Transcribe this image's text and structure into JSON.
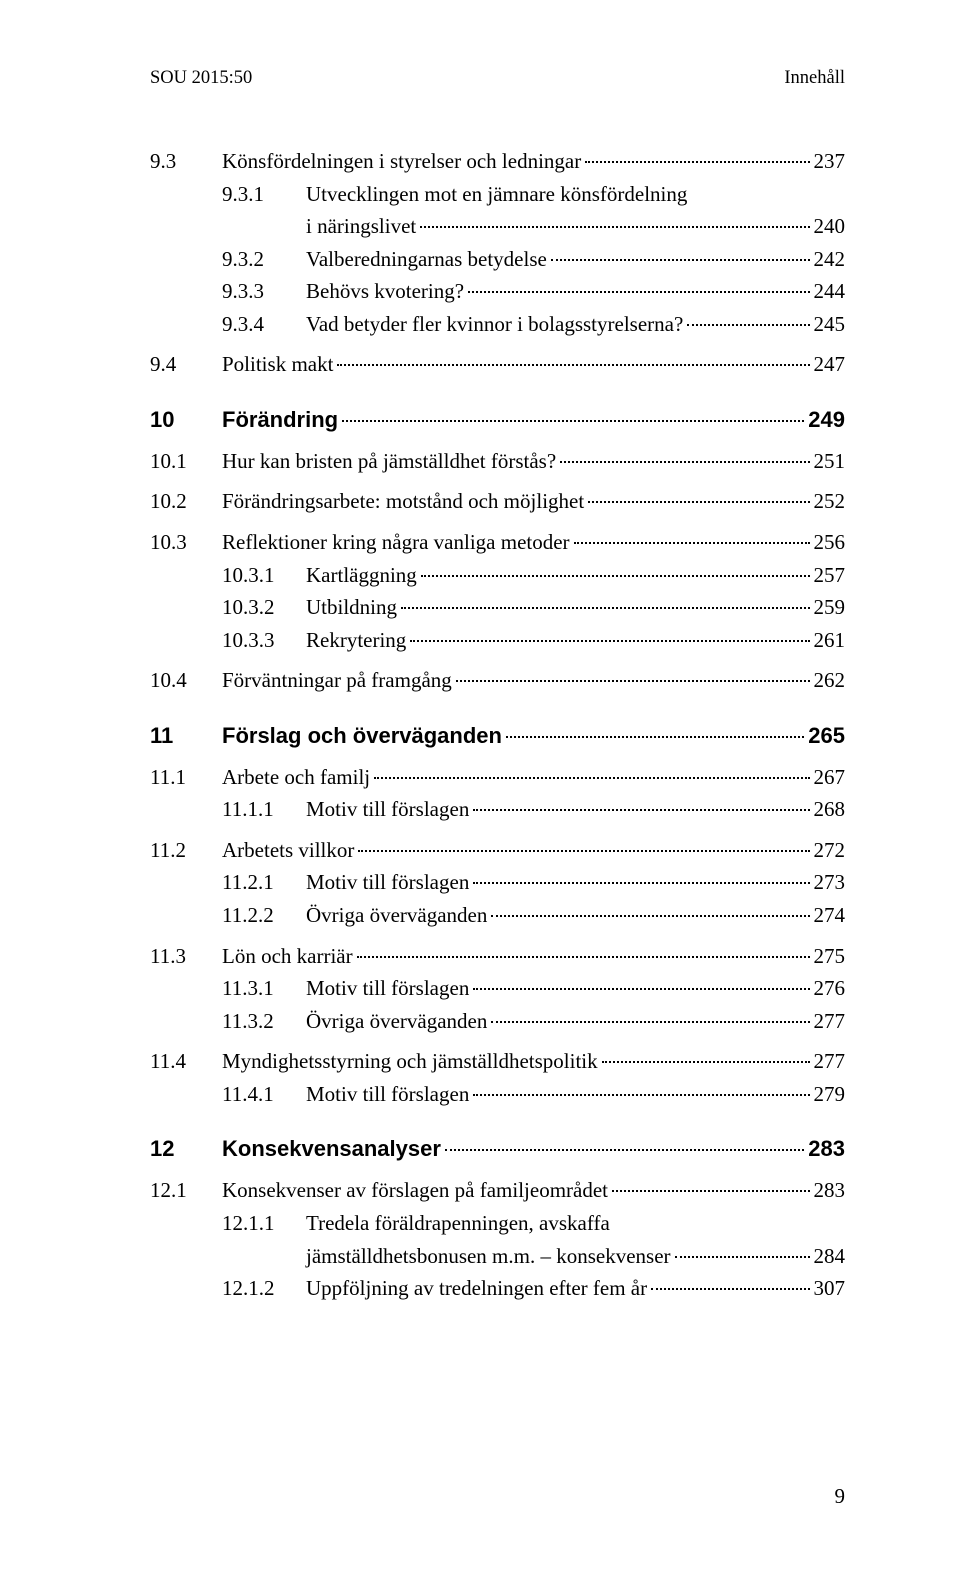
{
  "header": {
    "left": "SOU 2015:50",
    "right": "Innehåll"
  },
  "entries": [
    {
      "type": "l1",
      "num": "9.3",
      "text": "Könsfördelningen i styrelser och ledningar",
      "page": "237"
    },
    {
      "type": "l3",
      "num": "9.3.1",
      "text": "Utvecklingen mot en jämnare könsfördelning",
      "cont": "i näringslivet",
      "page": "240"
    },
    {
      "type": "l3",
      "num": "9.3.2",
      "text": "Valberedningarnas betydelse",
      "page": "242"
    },
    {
      "type": "l3",
      "num": "9.3.3",
      "text": "Behövs kvotering?",
      "page": "244"
    },
    {
      "type": "l3",
      "num": "9.3.4",
      "text": "Vad betyder fler kvinnor i bolagsstyrelserna?",
      "page": "245"
    },
    {
      "type": "gap-small"
    },
    {
      "type": "l1",
      "num": "9.4",
      "text": "Politisk makt",
      "page": "247"
    },
    {
      "type": "chapter",
      "num": "10",
      "text": "Förändring",
      "page": "249"
    },
    {
      "type": "l1",
      "num": "10.1",
      "text": "Hur kan bristen på jämställdhet förstås?",
      "page": "251"
    },
    {
      "type": "gap-small"
    },
    {
      "type": "l1",
      "num": "10.2",
      "text": "Förändringsarbete: motstånd och möjlighet",
      "page": "252"
    },
    {
      "type": "gap-small"
    },
    {
      "type": "l1",
      "num": "10.3",
      "text": "Reflektioner kring några vanliga metoder",
      "page": "256"
    },
    {
      "type": "l3",
      "num": "10.3.1",
      "text": "Kartläggning",
      "page": "257"
    },
    {
      "type": "l3",
      "num": "10.3.2",
      "text": "Utbildning",
      "page": "259"
    },
    {
      "type": "l3",
      "num": "10.3.3",
      "text": "Rekrytering",
      "page": "261"
    },
    {
      "type": "gap-small"
    },
    {
      "type": "l1",
      "num": "10.4",
      "text": "Förväntningar på framgång",
      "page": "262"
    },
    {
      "type": "chapter",
      "num": "11",
      "text": "Förslag och överväganden",
      "page": "265"
    },
    {
      "type": "l1",
      "num": "11.1",
      "text": "Arbete och familj",
      "page": "267"
    },
    {
      "type": "l3",
      "num": "11.1.1",
      "text": "Motiv till förslagen",
      "page": "268"
    },
    {
      "type": "gap-small"
    },
    {
      "type": "l1",
      "num": "11.2",
      "text": "Arbetets villkor",
      "page": "272"
    },
    {
      "type": "l3",
      "num": "11.2.1",
      "text": "Motiv till förslagen",
      "page": "273"
    },
    {
      "type": "l3",
      "num": "11.2.2",
      "text": "Övriga överväganden",
      "page": "274"
    },
    {
      "type": "gap-small"
    },
    {
      "type": "l1",
      "num": "11.3",
      "text": "Lön och karriär",
      "page": "275"
    },
    {
      "type": "l3",
      "num": "11.3.1",
      "text": "Motiv till förslagen",
      "page": "276"
    },
    {
      "type": "l3",
      "num": "11.3.2",
      "text": "Övriga överväganden",
      "page": "277"
    },
    {
      "type": "gap-small"
    },
    {
      "type": "l1",
      "num": "11.4",
      "text": "Myndighetsstyrning och jämställdhetspolitik",
      "page": "277"
    },
    {
      "type": "l3",
      "num": "11.4.1",
      "text": "Motiv till förslagen",
      "page": "279"
    },
    {
      "type": "chapter",
      "num": "12",
      "text": "Konsekvensanalyser",
      "page": "283"
    },
    {
      "type": "l1",
      "num": "12.1",
      "text": "Konsekvenser av förslagen på familjeområdet",
      "page": "283"
    },
    {
      "type": "l3",
      "num": "12.1.1",
      "text": "Tredela föräldrapenningen, avskaffa",
      "cont": "jämställdhetsbonusen m.m. – konsekvenser",
      "page": "284"
    },
    {
      "type": "l3",
      "num": "12.1.2",
      "text": "Uppföljning av tredelningen efter fem år",
      "page": "307"
    }
  ],
  "pageNumber": "9"
}
